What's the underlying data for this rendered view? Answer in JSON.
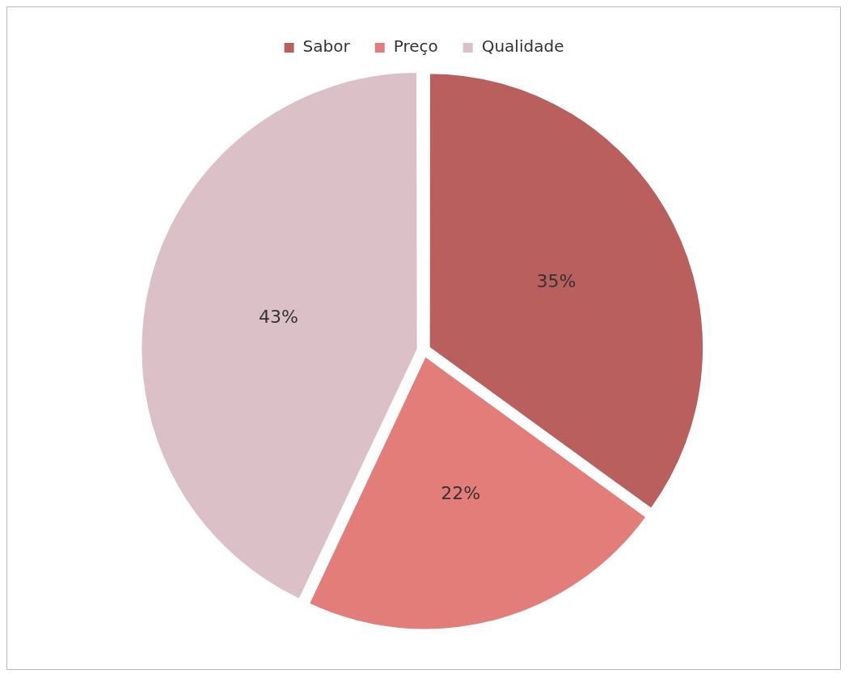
{
  "chart_data": {
    "type": "pie",
    "categories": [
      "Sabor",
      "Preço",
      "Qualidade"
    ],
    "values": [
      35,
      22,
      43
    ],
    "value_labels": [
      "35%",
      "22%",
      "43%"
    ],
    "colors": [
      "#b9605e",
      "#e37d79",
      "#dcc0c7"
    ],
    "legend": "top"
  }
}
